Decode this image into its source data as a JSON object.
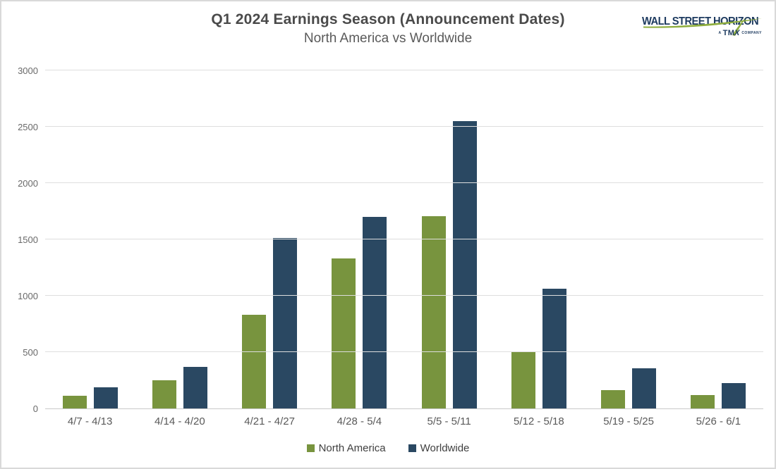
{
  "header": {
    "title": "Q1 2024 Earnings Season (Announcement Dates)",
    "subtitle": "North America vs Worldwide"
  },
  "logo": {
    "brand": "WALL STREET HORIZON",
    "tagline_prefix": "A",
    "tagline_tm": "TM",
    "tagline_x": "X",
    "tagline_suffix": "COMPANY",
    "brand_color": "#1d3a5f",
    "swoosh_color": "#8fae3e"
  },
  "chart_data": {
    "type": "bar",
    "title": "Q1 2024 Earnings Season (Announcement Dates)",
    "subtitle": "North America vs Worldwide",
    "categories": [
      "4/7 - 4/13",
      "4/14 - 4/20",
      "4/21 - 4/27",
      "4/28 - 5/4",
      "5/5 - 5/11",
      "5/12 - 5/18",
      "5/19 - 5/25",
      "5/26 - 6/1"
    ],
    "series": [
      {
        "name": "North America",
        "color": "#78943E",
        "values": [
          115,
          250,
          830,
          1330,
          1705,
          505,
          165,
          120
        ]
      },
      {
        "name": "Worldwide",
        "color": "#2A4862",
        "values": [
          185,
          370,
          1510,
          1700,
          2550,
          1065,
          355,
          225
        ]
      }
    ],
    "ylim": [
      0,
      3000
    ],
    "y_ticks": [
      0,
      500,
      1000,
      1500,
      2000,
      2500,
      3000
    ],
    "xlabel": "",
    "ylabel": "",
    "grid": true,
    "legend_position": "bottom"
  }
}
